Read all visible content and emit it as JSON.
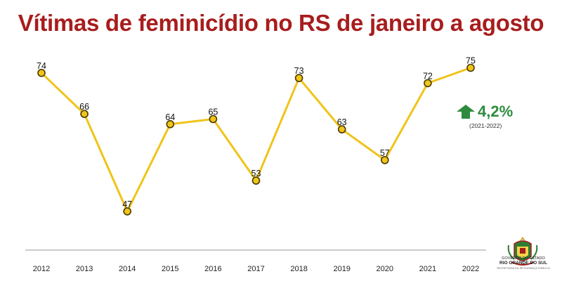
{
  "title": "Vítimas de feminicídio no RS de janeiro a agosto",
  "change": {
    "value": "4,2%",
    "period": "(2021-2022)",
    "direction": "up",
    "color": "#2e8b3e"
  },
  "logo": {
    "line1": "GOVERNO DO ESTADO",
    "line2": "RIO GRANDE DO SUL",
    "line3": "SECRETARIA DA SEGURANÇA PÚBLICA"
  },
  "colors": {
    "title": "#a81d1d",
    "line": "#f0c419",
    "marker_fill": "#f0c419",
    "marker_stroke": "#4a3a00",
    "axis": "#999999"
  },
  "chart_data": {
    "type": "line",
    "title": "Vítimas de feminicídio no RS de janeiro a agosto",
    "categories": [
      "2012",
      "2013",
      "2014",
      "2015",
      "2016",
      "2017",
      "2018",
      "2019",
      "2020",
      "2021",
      "2022"
    ],
    "series": [
      {
        "values": [
          74,
          66,
          47,
          64,
          65,
          53,
          73,
          63,
          57,
          72,
          75
        ]
      }
    ],
    "ylim": [
      40,
      80
    ],
    "grid": false,
    "legend": "none",
    "data_labels": true
  }
}
